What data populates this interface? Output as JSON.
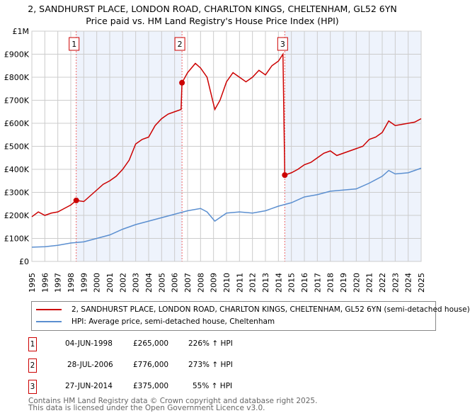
{
  "chart_data": {
    "type": "line",
    "title": "2, SANDHURST PLACE, LONDON ROAD, CHARLTON KINGS, CHELTENHAM, GL52 6YN",
    "subtitle": "Price paid vs. HM Land Registry's House Price Index (HPI)",
    "xlim": [
      1995,
      2025
    ],
    "ylim": [
      0,
      1000000
    ],
    "x_ticks": [
      "1995",
      "1996",
      "1997",
      "1998",
      "1999",
      "2000",
      "2001",
      "2002",
      "2003",
      "2004",
      "2005",
      "2006",
      "2007",
      "2008",
      "2009",
      "2010",
      "2011",
      "2012",
      "2013",
      "2014",
      "2015",
      "2016",
      "2017",
      "2018",
      "2019",
      "2020",
      "2021",
      "2022",
      "2023",
      "2024",
      "2025"
    ],
    "y_ticks": [
      {
        "v": 0,
        "label": "£0"
      },
      {
        "v": 100000,
        "label": "£100K"
      },
      {
        "v": 200000,
        "label": "£200K"
      },
      {
        "v": 300000,
        "label": "£300K"
      },
      {
        "v": 400000,
        "label": "£400K"
      },
      {
        "v": 500000,
        "label": "£500K"
      },
      {
        "v": 600000,
        "label": "£600K"
      },
      {
        "v": 700000,
        "label": "£700K"
      },
      {
        "v": 800000,
        "label": "£800K"
      },
      {
        "v": 900000,
        "label": "£900K"
      },
      {
        "v": 1000000,
        "label": "£1M"
      }
    ],
    "grid": true,
    "series": [
      {
        "name": "2, SANDHURST PLACE, LONDON ROAD, CHARLTON KINGS, CHELTENHAM, GL52 6YN (semi-detached house)",
        "color": "#cc0000",
        "x": [
          1995,
          1995.5,
          1996,
          1996.5,
          1997,
          1997.5,
          1998,
          1998.42,
          1999,
          1999.5,
          2000,
          2000.5,
          2001,
          2001.5,
          2002,
          2002.5,
          2003,
          2003.5,
          2004,
          2004.5,
          2005,
          2005.5,
          2006,
          2006.5,
          2006.57,
          2007,
          2007.6,
          2008,
          2008.5,
          2009.1,
          2009.5,
          2010,
          2010.5,
          2011,
          2011.5,
          2012,
          2012.5,
          2013,
          2013.5,
          2014,
          2014.35,
          2014.49,
          2015,
          2015.5,
          2016,
          2016.5,
          2017,
          2017.5,
          2018,
          2018.5,
          2019,
          2019.5,
          2020,
          2020.5,
          2021,
          2021.5,
          2022,
          2022.5,
          2023,
          2023.5,
          2024,
          2024.5,
          2025
        ],
        "y": [
          194000,
          215000,
          200000,
          210000,
          215000,
          230000,
          245000,
          265000,
          260000,
          285000,
          310000,
          335000,
          350000,
          370000,
          400000,
          440000,
          510000,
          530000,
          540000,
          590000,
          620000,
          640000,
          650000,
          660000,
          776000,
          820000,
          860000,
          840000,
          800000,
          660000,
          700000,
          780000,
          820000,
          800000,
          780000,
          800000,
          830000,
          810000,
          850000,
          870000,
          900000,
          375000,
          385000,
          400000,
          420000,
          430000,
          450000,
          470000,
          480000,
          460000,
          470000,
          480000,
          490000,
          500000,
          530000,
          540000,
          560000,
          610000,
          590000,
          595000,
          600000,
          605000,
          620000
        ]
      },
      {
        "name": "HPI: Average price, semi-detached house, Cheltenham",
        "color": "#5b8fd0",
        "x": [
          1995,
          1996,
          1997,
          1998,
          1999,
          2000,
          2001,
          2002,
          2003,
          2004,
          2005,
          2006,
          2007,
          2008,
          2008.5,
          2009.1,
          2010,
          2011,
          2012,
          2013,
          2014,
          2015,
          2016,
          2017,
          2018,
          2019,
          2020,
          2021,
          2022,
          2022.5,
          2023,
          2024,
          2025
        ],
        "y": [
          62000,
          64000,
          70000,
          80000,
          85000,
          100000,
          115000,
          140000,
          160000,
          175000,
          190000,
          205000,
          220000,
          230000,
          215000,
          175000,
          210000,
          215000,
          210000,
          220000,
          240000,
          255000,
          280000,
          290000,
          305000,
          310000,
          315000,
          340000,
          370000,
          395000,
          380000,
          385000,
          405000
        ]
      }
    ],
    "sales": [
      {
        "n": "1",
        "x": 1998.42,
        "y": 265000,
        "date": "04-JUN-1998",
        "price": "£265,000",
        "hpi": "226% ↑ HPI"
      },
      {
        "n": "2",
        "x": 2006.57,
        "y": 776000,
        "date": "28-JUL-2006",
        "price": "£776,000",
        "hpi": "273% ↑ HPI"
      },
      {
        "n": "3",
        "x": 2014.49,
        "y": 375000,
        "date": "27-JUN-2014",
        "price": "£375,000",
        "hpi": "55% ↑ HPI"
      }
    ],
    "legend_position": "below"
  },
  "footer": {
    "line1": "Contains HM Land Registry data © Crown copyright and database right 2025.",
    "line2": "This data is licensed under the Open Government Licence v3.0."
  }
}
